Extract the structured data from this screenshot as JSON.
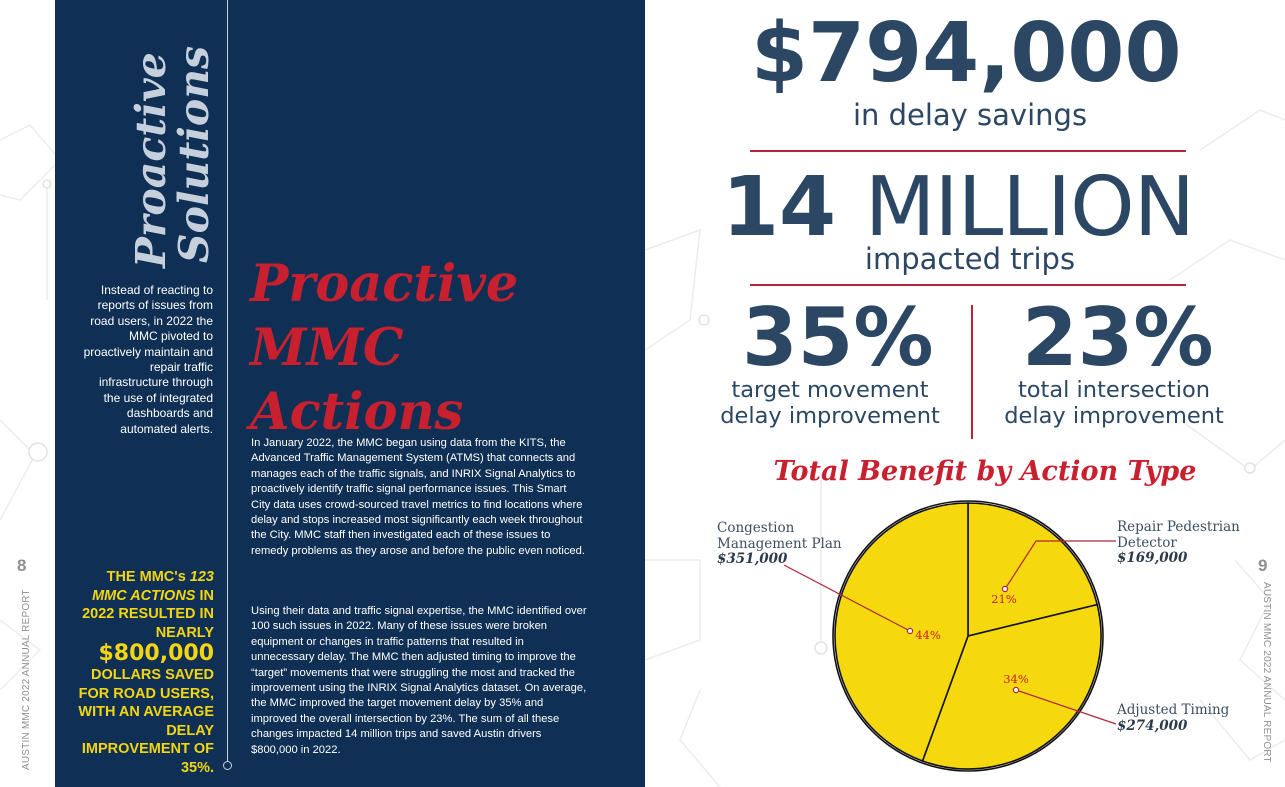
{
  "left_page": {
    "page_number": "8",
    "footer_label": "AUSTIN MMC 2022 ANNUAL REPORT",
    "vertical_title": [
      "Proactive",
      "Solutions"
    ],
    "intro": "Instead of reacting to reports of issues from road users, in 2022 the MMC pivoted to proactively maintain and repair traffic infrastructure through the use of integrated dashboards and automated alerts.",
    "callout": {
      "line1": "THE MMC's ",
      "emph": "123 MMC ACTIONS",
      "line2": " IN 2022 RESULTED IN NEARLY",
      "big": "$800,000",
      "line3": "DOLLARS SAVED FOR ROAD USERS, WITH AN AVERAGE DELAY IMPROVEMENT OF 35%."
    },
    "title": [
      "Proactive",
      "MMC",
      "Actions"
    ],
    "paragraphs": [
      "In January 2022, the MMC began using data from the KITS, the Advanced Traffic Management System (ATMS) that connects and manages each of the traffic signals, and INRIX Signal Analytics to proactively identify traffic signal performance issues. This Smart City data uses crowd-sourced travel metrics to find locations where delay and stops increased most significantly each week throughout the City. MMC staff then investigated each of these issues to remedy problems as they arose and before the public even noticed.",
      "Using their data and traffic signal expertise, the MMC identified over 100 such issues in 2022. Many of these issues were broken equipment or  changes in traffic patterns that resulted in unnecessary delay. The MMC then adjusted timing to improve the “target” movements that were struggling the most and tracked the improvement using the INRIX Signal Analytics dataset. On average, the MMC improved the target movement delay by 35% and improved the overall intersection by 23%. The sum of all these changes impacted 14 million trips and saved Austin drivers $800,000 in 2022."
    ]
  },
  "right_page": {
    "page_number": "9",
    "footer_label": "AUSTIN MMC 2022 ANNUAL REPORT",
    "stats": {
      "savings_value": "$794,000",
      "savings_label": "in delay savings",
      "trips_num": "14",
      "trips_word": "MILLION",
      "trips_label": "impacted trips",
      "target_value": "35%",
      "target_label": [
        "target movement",
        "delay improvement"
      ],
      "total_value": "23%",
      "total_label": [
        "total intersection",
        "delay improvement"
      ]
    },
    "colors": {
      "navy": "#0f3054",
      "red": "#c8202f",
      "yellow": "#f5d80d",
      "stat": "#2b4763"
    }
  },
  "chart_data": {
    "type": "pie",
    "title": "Total Benefit by Action Type",
    "slices": [
      {
        "name": "Repair Pedestrian Detector",
        "name_lines": [
          "Repair Pedestrian",
          "Detector"
        ],
        "amount": "$169,000",
        "value": 21,
        "label": "21%"
      },
      {
        "name": "Adjusted Timing",
        "name_lines": [
          "Adjusted Timing"
        ],
        "amount": "$274,000",
        "value": 34,
        "label": "34%"
      },
      {
        "name": "Congestion Management Plan",
        "name_lines": [
          "Congestion",
          "Management Plan"
        ],
        "amount": "$351,000",
        "value": 44,
        "label": "44%"
      }
    ],
    "fill": "#f5d80d",
    "start_angle_deg": 0,
    "legend": "callouts"
  }
}
